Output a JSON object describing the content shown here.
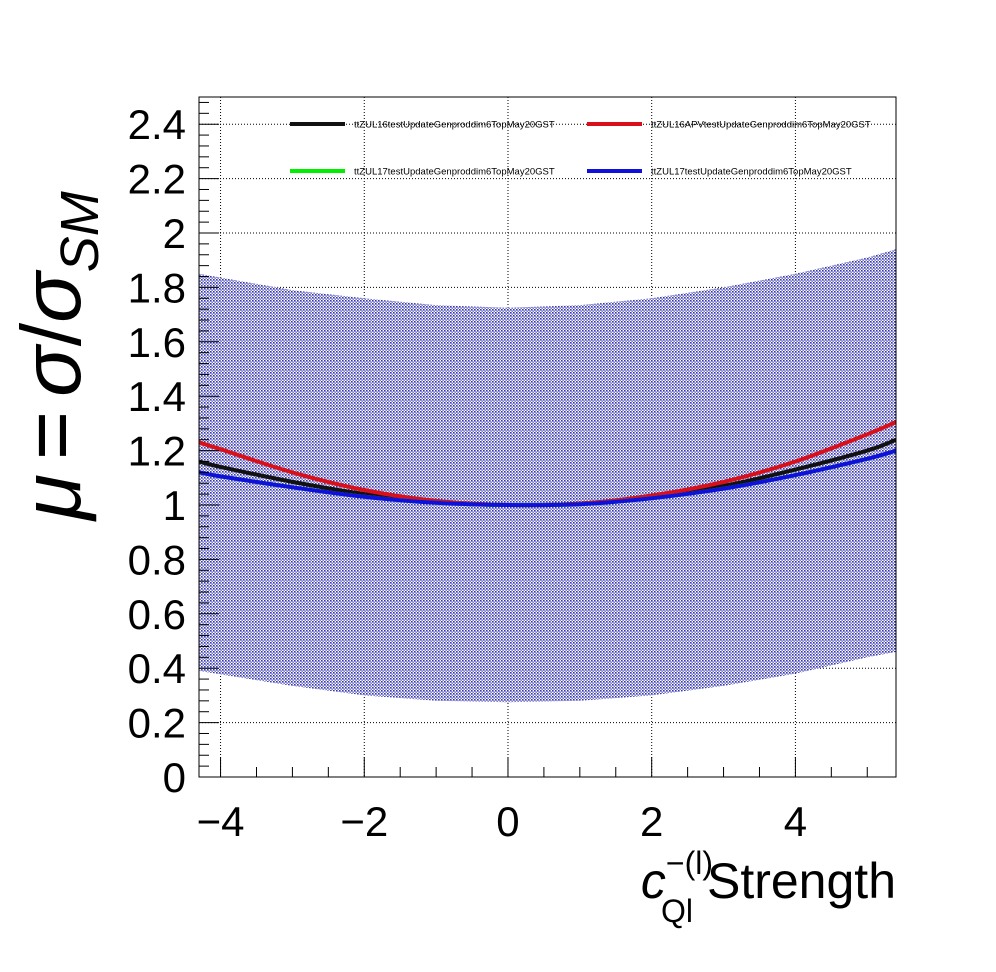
{
  "chart_data": {
    "type": "line",
    "xlim": [
      -4.3,
      5.4
    ],
    "ylim": [
      0,
      2.5
    ],
    "x_ticks": [
      {
        "v": -4,
        "label": "−4"
      },
      {
        "v": -2,
        "label": "−2"
      },
      {
        "v": 0,
        "label": "0"
      },
      {
        "v": 2,
        "label": "2"
      },
      {
        "v": 4,
        "label": "4"
      }
    ],
    "y_ticks": [
      {
        "v": 0,
        "label": "0"
      },
      {
        "v": 0.2,
        "label": "0.2"
      },
      {
        "v": 0.4,
        "label": "0.4"
      },
      {
        "v": 0.6,
        "label": "0.6"
      },
      {
        "v": 0.8,
        "label": "0.8"
      },
      {
        "v": 1,
        "label": "1"
      },
      {
        "v": 1.2,
        "label": "1.2"
      },
      {
        "v": 1.4,
        "label": "1.4"
      },
      {
        "v": 1.6,
        "label": "1.6"
      },
      {
        "v": 1.8,
        "label": "1.8"
      },
      {
        "v": 2,
        "label": "2"
      },
      {
        "v": 2.2,
        "label": "2.2"
      },
      {
        "v": 2.4,
        "label": "2.4"
      }
    ],
    "grid": true,
    "legend_position": "top",
    "xlabel": {
      "symbol": "c",
      "subscript": "Ql",
      "superscript": "−(l)",
      "text": "Strength"
    },
    "ylabel": {
      "mu": "μ",
      "eq": "=",
      "sigma": "σ",
      "slash": "/",
      "sigma_sm": "σ",
      "subscript": "SM"
    },
    "band": {
      "color": "#2b2ba8",
      "upper": [
        [
          -4.3,
          1.85
        ],
        [
          -3,
          1.79
        ],
        [
          -2,
          1.76
        ],
        [
          -1,
          1.735
        ],
        [
          0,
          1.725
        ],
        [
          1,
          1.735
        ],
        [
          2,
          1.76
        ],
        [
          3,
          1.8
        ],
        [
          4,
          1.85
        ],
        [
          5,
          1.91
        ],
        [
          5.4,
          1.94
        ]
      ],
      "lower": [
        [
          -4.3,
          0.39
        ],
        [
          -3,
          0.335
        ],
        [
          -2,
          0.3
        ],
        [
          -1,
          0.28
        ],
        [
          0,
          0.275
        ],
        [
          1,
          0.28
        ],
        [
          2,
          0.3
        ],
        [
          3,
          0.335
        ],
        [
          4,
          0.38
        ],
        [
          5,
          0.44
        ],
        [
          5.4,
          0.46
        ]
      ]
    },
    "series": [
      {
        "name": "ttZUL16testUpdateGenproddim6TopMay20GST",
        "color": "#111111",
        "x": [
          -4.3,
          -4,
          -3,
          -2,
          -1,
          0,
          1,
          2,
          3,
          4,
          5,
          5.4
        ],
        "y": [
          1.16,
          1.14,
          1.085,
          1.04,
          1.01,
          1.0,
          1.005,
          1.03,
          1.07,
          1.13,
          1.2,
          1.24
        ]
      },
      {
        "name": "ttZUL16APVtestUpdateGenproddim6TopMay20GST",
        "color": "#d90f1a",
        "x": [
          -4.3,
          -4,
          -3,
          -2,
          -1,
          0,
          1,
          2,
          3,
          4,
          5,
          5.4
        ],
        "y": [
          1.23,
          1.205,
          1.12,
          1.055,
          1.015,
          1.0,
          1.005,
          1.035,
          1.085,
          1.16,
          1.26,
          1.305
        ]
      },
      {
        "name": "ttZUL17testUpdateGenproddim6TopMay20GST",
        "color": "#00ee00",
        "x": [
          -4.3,
          -4,
          -3,
          -2,
          -1,
          0,
          1,
          2,
          3,
          4,
          5,
          5.4
        ],
        "y": [
          1.12,
          1.105,
          1.065,
          1.03,
          1.008,
          1.0,
          1.003,
          1.025,
          1.06,
          1.11,
          1.17,
          1.2
        ]
      },
      {
        "name": "ttZUL17testUpdateGenproddim6TopMay20GST",
        "color": "#1010dd",
        "x": [
          -4.3,
          -4,
          -3,
          -2,
          -1,
          0,
          1,
          2,
          3,
          4,
          5,
          5.4
        ],
        "y": [
          1.12,
          1.105,
          1.065,
          1.03,
          1.008,
          1.0,
          1.003,
          1.025,
          1.06,
          1.11,
          1.17,
          1.2
        ]
      }
    ]
  }
}
